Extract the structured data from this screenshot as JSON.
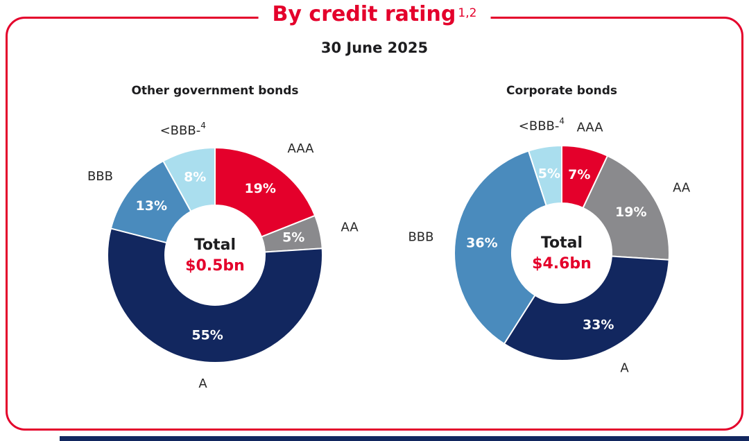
{
  "page": {
    "title": "By credit rating",
    "title_sup": "1,2",
    "date": "30 June 2025"
  },
  "colors": {
    "accent_red": "#e4002b",
    "navy": "#12275f",
    "steel_blue": "#4a8bbd",
    "light_blue": "#aadeee",
    "gray": "#8a8a8d",
    "text_dark": "#1d1d1f"
  },
  "chart_data": [
    {
      "type": "pie",
      "title": "Other government bonds",
      "center_label": "Total",
      "center_value": "$0.5bn",
      "start_angle_deg": 0,
      "direction": "clockwise",
      "legend_position": "outside-labels",
      "segments": [
        {
          "label": "AAA",
          "value": 19,
          "pct_label": "19%",
          "color": "#e4002b"
        },
        {
          "label": "AA",
          "value": 5,
          "pct_label": "5%",
          "color": "#8a8a8d"
        },
        {
          "label": "A",
          "value": 55,
          "pct_label": "55%",
          "color": "#12275f"
        },
        {
          "label": "BBB",
          "value": 13,
          "pct_label": "13%",
          "color": "#4a8bbd"
        },
        {
          "label": "<BBB-",
          "label_sup": "4",
          "value": 8,
          "pct_label": "8%",
          "color": "#aadeee"
        }
      ]
    },
    {
      "type": "pie",
      "title": "Corporate bonds",
      "center_label": "Total",
      "center_value": "$4.6bn",
      "start_angle_deg": 0,
      "direction": "clockwise",
      "legend_position": "outside-labels",
      "segments": [
        {
          "label": "AAA",
          "value": 7,
          "pct_label": "7%",
          "color": "#e4002b"
        },
        {
          "label": "AA",
          "value": 19,
          "pct_label": "19%",
          "color": "#8a8a8d"
        },
        {
          "label": "A",
          "value": 33,
          "pct_label": "33%",
          "color": "#12275f"
        },
        {
          "label": "BBB",
          "value": 36,
          "pct_label": "36%",
          "color": "#4a8bbd"
        },
        {
          "label": "<BBB-",
          "label_sup": "4",
          "value": 5,
          "pct_label": "5%",
          "color": "#aadeee"
        }
      ]
    }
  ]
}
